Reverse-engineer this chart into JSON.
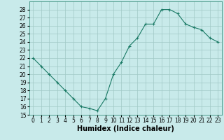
{
  "x": [
    0,
    1,
    2,
    3,
    4,
    5,
    6,
    7,
    8,
    9,
    10,
    11,
    12,
    13,
    14,
    15,
    16,
    17,
    18,
    19,
    20,
    21,
    22,
    23
  ],
  "y": [
    22,
    21,
    20,
    19,
    18,
    17,
    16,
    15.8,
    15.5,
    17,
    20,
    21.5,
    23.5,
    24.5,
    26.2,
    26.2,
    28,
    28,
    27.5,
    26.2,
    25.8,
    25.5,
    24.5,
    24
  ],
  "line_color": "#1a7a65",
  "marker": "+",
  "marker_color": "#1a7a65",
  "bg_color": "#c8eaea",
  "grid_color": "#a0c8c5",
  "xlabel": "Humidex (Indice chaleur)",
  "xlim": [
    -0.5,
    23.5
  ],
  "ylim": [
    15,
    29
  ],
  "yticks": [
    15,
    16,
    17,
    18,
    19,
    20,
    21,
    22,
    23,
    24,
    25,
    26,
    27,
    28
  ],
  "xticks": [
    0,
    1,
    2,
    3,
    4,
    5,
    6,
    7,
    8,
    9,
    10,
    11,
    12,
    13,
    14,
    15,
    16,
    17,
    18,
    19,
    20,
    21,
    22,
    23
  ],
  "label_fontsize": 7,
  "tick_fontsize": 5.5
}
